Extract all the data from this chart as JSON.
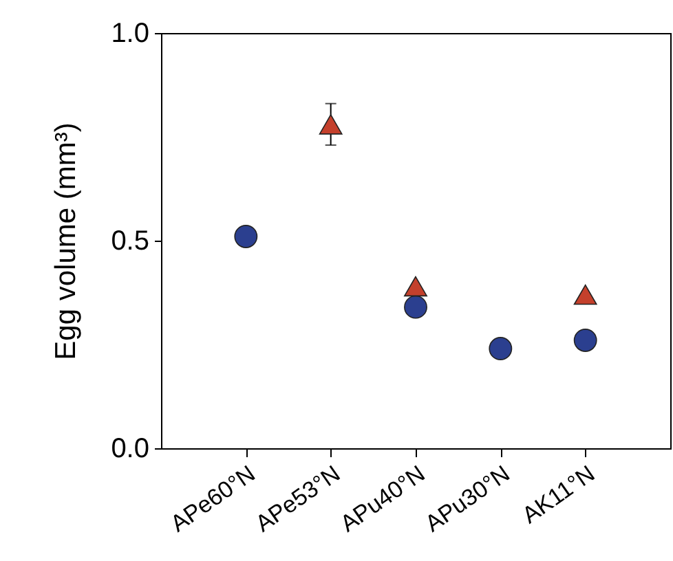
{
  "chart_data": {
    "type": "scatter",
    "ylabel": "Egg volume (mm³)",
    "categories": [
      "APe60°N",
      "APe53°N",
      "APu40°N",
      "APu30°N",
      "AK11°N"
    ],
    "series": [
      {
        "color": "#2b3f8f",
        "marker": "circle",
        "values": [
          0.51,
          null,
          0.34,
          0.24,
          0.26
        ]
      },
      {
        "color": "#c4402c",
        "marker": "triangle",
        "values": [
          null,
          0.78,
          0.39,
          null,
          0.37
        ],
        "errors": [
          null,
          0.05,
          null,
          null,
          null
        ]
      }
    ],
    "ylim": [
      0,
      1
    ],
    "yticks": [
      {
        "value": 0,
        "label": "0.0"
      },
      0.5,
      {
        "value": 1,
        "label": "1.0"
      }
    ],
    "grid": false
  }
}
